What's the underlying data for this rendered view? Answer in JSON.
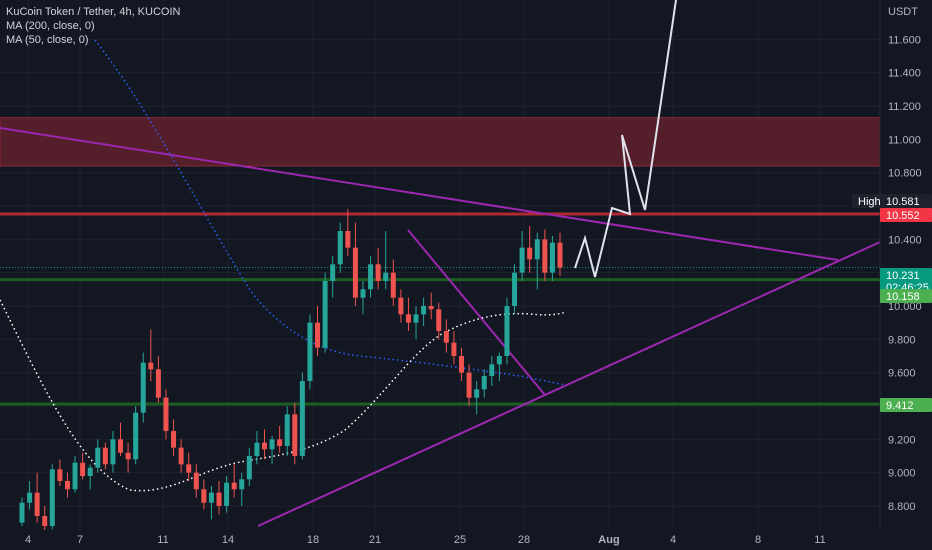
{
  "legend": {
    "symbol": "KuCoin Token / Tether, 4h, KUCOIN",
    "ma200": "MA (200, close, 0)",
    "ma50": "MA (50, close, 0)"
  },
  "currency_label": "USDT",
  "chart_data": {
    "type": "candlestick",
    "title": "KuCoin Token / Tether, 4h, KUCOIN",
    "y_unit": "USDT",
    "y_ticks": [
      "8.800",
      "9.000",
      "9.200",
      "9.400",
      "9.600",
      "9.800",
      "10.000",
      "10.200",
      "10.400",
      "10.600",
      "10.800",
      "11.000",
      "11.200",
      "11.400",
      "11.600"
    ],
    "x_ticks": [
      "4",
      "7",
      "11",
      "14",
      "18",
      "21",
      "25",
      "28",
      "Aug",
      "4",
      "8",
      "11"
    ],
    "price_tags": [
      {
        "label": "High",
        "value": "10.581",
        "color": "#1e222d"
      },
      {
        "label": "",
        "value": "10.552",
        "color": "#f23645"
      },
      {
        "label": "",
        "value": "10.231",
        "sub": "02:46:25",
        "color": "#089981"
      },
      {
        "label": "",
        "value": "10.158",
        "color": "#4caf50"
      },
      {
        "label": "",
        "value": "9.412",
        "color": "#4caf50"
      }
    ],
    "resistance_zone": [
      10.84,
      11.13
    ],
    "horizontal_levels": [
      {
        "value": 10.552,
        "color": "#b22833"
      },
      {
        "value": 10.158,
        "color": "#1b5e20"
      },
      {
        "value": 9.412,
        "color": "#1b5e20"
      }
    ],
    "candles_approx": [
      [
        8.7,
        8.85,
        8.68,
        8.82
      ],
      [
        8.82,
        8.95,
        8.78,
        8.88
      ],
      [
        8.88,
        9.0,
        8.7,
        8.74
      ],
      [
        8.74,
        8.8,
        8.62,
        8.68
      ],
      [
        8.68,
        9.05,
        8.66,
        9.02
      ],
      [
        9.02,
        9.08,
        8.92,
        8.95
      ],
      [
        8.95,
        9.0,
        8.85,
        8.9
      ],
      [
        8.9,
        9.1,
        8.88,
        9.06
      ],
      [
        9.06,
        9.12,
        8.96,
        8.98
      ],
      [
        8.98,
        9.05,
        8.9,
        9.03
      ],
      [
        9.03,
        9.2,
        9.0,
        9.15
      ],
      [
        9.15,
        9.18,
        9.02,
        9.05
      ],
      [
        9.05,
        9.25,
        9.0,
        9.2
      ],
      [
        9.2,
        9.3,
        9.1,
        9.12
      ],
      [
        9.12,
        9.18,
        9.0,
        9.08
      ],
      [
        9.08,
        9.4,
        9.05,
        9.36
      ],
      [
        9.36,
        9.72,
        9.3,
        9.66
      ],
      [
        9.66,
        9.86,
        9.55,
        9.62
      ],
      [
        9.62,
        9.7,
        9.42,
        9.45
      ],
      [
        9.45,
        9.5,
        9.2,
        9.25
      ],
      [
        9.25,
        9.32,
        9.1,
        9.15
      ],
      [
        9.15,
        9.2,
        9.0,
        9.05
      ],
      [
        9.05,
        9.12,
        8.95,
        9.0
      ],
      [
        9.0,
        9.05,
        8.85,
        8.9
      ],
      [
        8.9,
        8.96,
        8.78,
        8.82
      ],
      [
        8.82,
        8.92,
        8.72,
        8.88
      ],
      [
        8.88,
        8.95,
        8.75,
        8.8
      ],
      [
        8.8,
        8.98,
        8.76,
        8.94
      ],
      [
        8.94,
        9.05,
        8.85,
        8.9
      ],
      [
        8.9,
        9.0,
        8.8,
        8.96
      ],
      [
        8.96,
        9.15,
        8.92,
        9.1
      ],
      [
        9.1,
        9.25,
        9.05,
        9.18
      ],
      [
        9.18,
        9.26,
        9.08,
        9.14
      ],
      [
        9.14,
        9.22,
        9.05,
        9.2
      ],
      [
        9.2,
        9.28,
        9.12,
        9.16
      ],
      [
        9.16,
        9.4,
        9.1,
        9.35
      ],
      [
        9.35,
        9.42,
        9.05,
        9.1
      ],
      [
        9.1,
        9.6,
        9.08,
        9.55
      ],
      [
        9.55,
        9.95,
        9.5,
        9.9
      ],
      [
        9.9,
        10.0,
        9.7,
        9.75
      ],
      [
        9.75,
        10.2,
        9.72,
        10.15
      ],
      [
        10.15,
        10.3,
        10.05,
        10.25
      ],
      [
        10.25,
        10.5,
        10.2,
        10.45
      ],
      [
        10.45,
        10.58,
        10.3,
        10.35
      ],
      [
        10.35,
        10.5,
        10.0,
        10.05
      ],
      [
        10.05,
        10.15,
        9.95,
        10.1
      ],
      [
        10.1,
        10.3,
        10.05,
        10.25
      ],
      [
        10.25,
        10.35,
        10.1,
        10.15
      ],
      [
        10.15,
        10.45,
        10.1,
        10.2
      ],
      [
        10.2,
        10.28,
        10.0,
        10.05
      ],
      [
        10.05,
        10.1,
        9.9,
        9.95
      ],
      [
        9.95,
        10.05,
        9.85,
        9.9
      ],
      [
        9.9,
        10.0,
        9.8,
        9.95
      ],
      [
        9.95,
        10.05,
        9.88,
        10.0
      ],
      [
        10.0,
        10.08,
        9.92,
        9.98
      ],
      [
        9.98,
        10.02,
        9.8,
        9.85
      ],
      [
        9.85,
        9.92,
        9.72,
        9.78
      ],
      [
        9.78,
        9.85,
        9.65,
        9.7
      ],
      [
        9.7,
        9.75,
        9.55,
        9.6
      ],
      [
        9.6,
        9.65,
        9.4,
        9.45
      ],
      [
        9.45,
        9.55,
        9.35,
        9.5
      ],
      [
        9.5,
        9.62,
        9.45,
        9.58
      ],
      [
        9.58,
        9.7,
        9.52,
        9.65
      ],
      [
        9.65,
        9.72,
        9.55,
        9.7
      ],
      [
        9.7,
        10.05,
        9.65,
        10.0
      ],
      [
        10.0,
        10.25,
        9.95,
        10.2
      ],
      [
        10.2,
        10.45,
        10.15,
        10.35
      ],
      [
        10.35,
        10.48,
        10.2,
        10.28
      ],
      [
        10.28,
        10.44,
        10.1,
        10.4
      ],
      [
        10.4,
        10.46,
        10.15,
        10.2
      ],
      [
        10.2,
        10.42,
        10.15,
        10.38
      ],
      [
        10.38,
        10.44,
        10.18,
        10.231
      ]
    ]
  }
}
